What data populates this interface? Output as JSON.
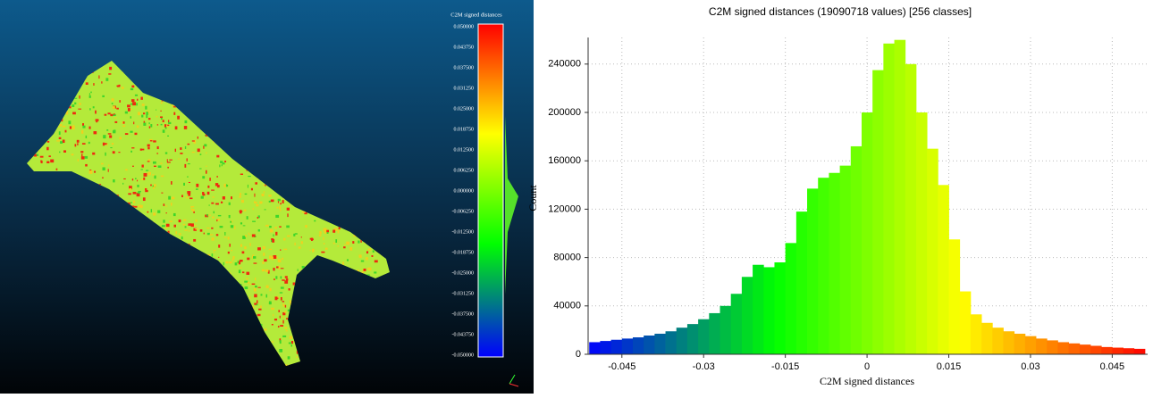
{
  "viewer": {
    "scale_title": "C2M signed distances",
    "scale_labels": [
      "0.050000",
      "0.043750",
      "0.037500",
      "0.031250",
      "0.025000",
      "0.018750",
      "0.012500",
      "0.006250",
      "0.000000",
      "-0.006250",
      "-0.012500",
      "-0.018750",
      "-0.025000",
      "-0.031250",
      "-0.037500",
      "-0.043750",
      "-0.050000"
    ]
  },
  "chart_data": {
    "type": "histogram",
    "title": "C2M signed distances (19090718 values)  [256 classes]",
    "x_label": "C2M signed distances",
    "y_label": "Count",
    "bins": [
      -0.051,
      -0.049,
      -0.047,
      -0.045,
      -0.043,
      -0.041,
      -0.039,
      -0.037,
      -0.035,
      -0.033,
      -0.031,
      -0.029,
      -0.027,
      -0.025,
      -0.023,
      -0.021,
      -0.019,
      -0.017,
      -0.015,
      -0.013,
      -0.011,
      -0.009,
      -0.007,
      -0.005,
      -0.003,
      -0.001,
      0.001,
      0.003,
      0.005,
      0.007,
      0.009,
      0.011,
      0.013,
      0.015,
      0.017,
      0.019,
      0.021,
      0.023,
      0.025,
      0.027,
      0.029,
      0.031,
      0.033,
      0.035,
      0.037,
      0.039,
      0.041,
      0.043,
      0.045,
      0.047,
      0.049,
      0.051
    ],
    "values": [
      10000,
      11000,
      12000,
      13000,
      14000,
      15500,
      17000,
      19000,
      22000,
      25000,
      29000,
      34000,
      40000,
      50000,
      64000,
      74000,
      72000,
      76000,
      92000,
      118000,
      137000,
      146000,
      150000,
      156000,
      172000,
      200000,
      235000,
      257000,
      260000,
      240000,
      200000,
      170000,
      140000,
      95000,
      52000,
      33000,
      26000,
      22000,
      19000,
      17000,
      15000,
      13000,
      11500,
      10000,
      9000,
      8000,
      7000,
      6000,
      5500,
      5000,
      4500
    ],
    "colormap": [
      "#0000ff",
      "#00ff00",
      "#ffff00",
      "#ff0000"
    ],
    "xlim": [
      -0.0512,
      0.0515
    ],
    "ylim": [
      0,
      262000
    ],
    "xticks": [
      -0.045,
      -0.03,
      -0.015,
      0,
      0.015,
      0.03,
      0.045
    ],
    "yticks": [
      0,
      40000,
      80000,
      120000,
      160000,
      200000,
      240000
    ],
    "grid": true
  }
}
